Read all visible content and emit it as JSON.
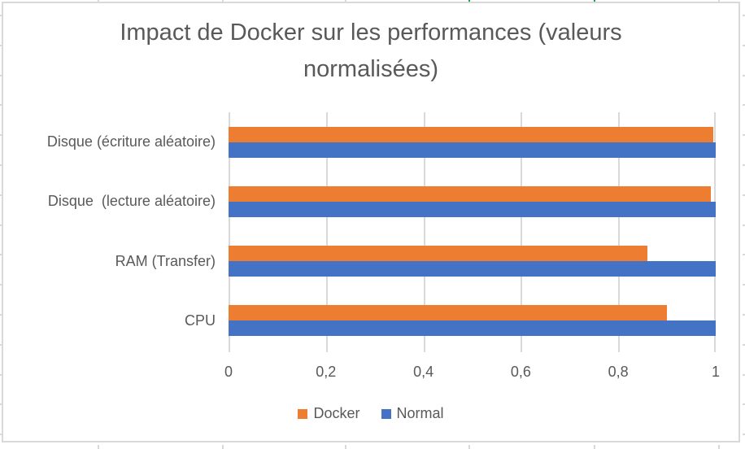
{
  "chart_data": {
    "type": "bar",
    "orientation": "horizontal",
    "title": "Impact de Docker sur les performances (valeurs normalisées)",
    "categories": [
      "Disque (écriture aléatoire)",
      "Disque  (lecture aléatoire)",
      "RAM (Transfer)",
      "CPU"
    ],
    "series": [
      {
        "name": "Docker",
        "color": "#ED7D31",
        "values": [
          0.995,
          0.99,
          0.86,
          0.9
        ]
      },
      {
        "name": "Normal",
        "color": "#4472C4",
        "values": [
          1,
          1,
          1,
          1
        ]
      }
    ],
    "xlabel": "",
    "ylabel": "",
    "xlim": [
      0,
      1
    ],
    "x_ticks": [
      "0",
      "0,2",
      "0,4",
      "0,6",
      "0,8",
      "1"
    ],
    "gridlines": true,
    "legend_position": "bottom",
    "style": {
      "text_color": "#595959",
      "gridline_color": "#D9D9D9"
    }
  }
}
